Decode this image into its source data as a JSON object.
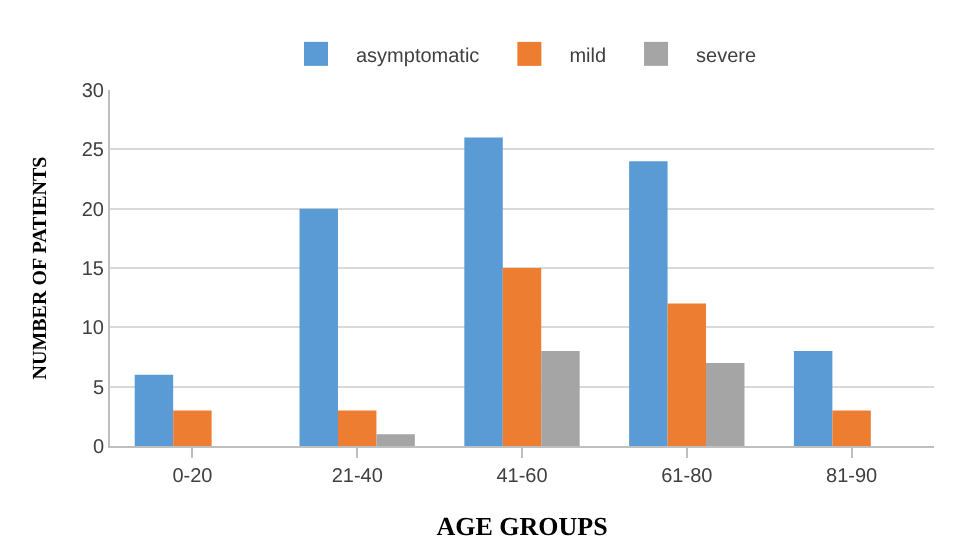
{
  "chart_data": {
    "type": "bar",
    "xlabel": "AGE GROUPS",
    "ylabel": "NUMBER OF PATIENTS",
    "categories": [
      "0-20",
      "21-40",
      "41-60",
      "61-80",
      "81-90"
    ],
    "series": [
      {
        "name": "asymptomatic",
        "color": "#5b9bd5",
        "values": [
          6,
          20,
          26,
          24,
          8
        ]
      },
      {
        "name": "mild",
        "color": "#ed7d31",
        "values": [
          3,
          3,
          15,
          12,
          3
        ]
      },
      {
        "name": "severe",
        "color": "#a5a5a5",
        "values": [
          null,
          1,
          8,
          7,
          null
        ]
      }
    ],
    "ylim": [
      0,
      30
    ],
    "yticks": [
      0,
      5,
      10,
      15,
      20,
      25,
      30
    ],
    "grid": "y",
    "legend": "top"
  }
}
